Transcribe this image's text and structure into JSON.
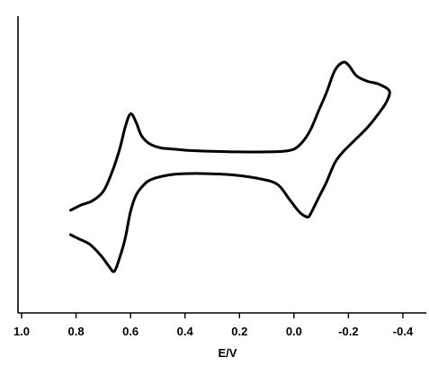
{
  "chart_data": {
    "type": "line",
    "title": "",
    "xlabel": "E/V",
    "ylabel": "",
    "x_reversed": true,
    "xlim": [
      1.0,
      -0.45
    ],
    "ylim": [
      0,
      1
    ],
    "y_axis_ticks": false,
    "grid": false,
    "legend": "none",
    "xticks": [
      1.0,
      0.8,
      0.6,
      0.4,
      0.2,
      0.0,
      -0.2,
      -0.4
    ],
    "xtick_labels": [
      "1.0",
      "0.8",
      "0.6",
      "0.4",
      "0.2",
      "0.0",
      "-0.2",
      "-0.4"
    ],
    "series": [
      {
        "x": [
          0.82,
          0.78,
          0.74,
          0.7,
          0.67,
          0.64,
          0.62,
          0.6,
          0.58,
          0.56,
          0.53,
          0.49,
          0.44,
          0.38,
          0.3,
          0.2,
          0.1,
          0.04,
          0.0,
          -0.03,
          -0.06,
          -0.09,
          -0.12,
          -0.15,
          -0.18,
          -0.2,
          -0.23,
          -0.27,
          -0.31,
          -0.35,
          -0.34,
          -0.31,
          -0.27,
          -0.22,
          -0.18,
          -0.15,
          -0.12,
          -0.1,
          -0.08,
          -0.06,
          -0.05,
          -0.03,
          -0.01,
          0.02,
          0.06,
          0.12,
          0.22,
          0.32,
          0.4,
          0.46,
          0.52,
          0.55,
          0.58,
          0.6,
          0.62,
          0.64,
          0.66,
          0.68,
          0.71,
          0.75,
          0.79,
          0.82
        ],
        "y": [
          0.325,
          0.345,
          0.36,
          0.395,
          0.46,
          0.55,
          0.63,
          0.68,
          0.65,
          0.6,
          0.57,
          0.555,
          0.55,
          0.545,
          0.542,
          0.54,
          0.54,
          0.542,
          0.55,
          0.575,
          0.62,
          0.69,
          0.76,
          0.84,
          0.87,
          0.86,
          0.82,
          0.8,
          0.79,
          0.765,
          0.725,
          0.68,
          0.63,
          0.58,
          0.54,
          0.5,
          0.43,
          0.39,
          0.35,
          0.31,
          0.3,
          0.31,
          0.33,
          0.37,
          0.42,
          0.44,
          0.455,
          0.46,
          0.46,
          0.455,
          0.44,
          0.42,
          0.38,
          0.32,
          0.22,
          0.15,
          0.1,
          0.12,
          0.16,
          0.2,
          0.22,
          0.235
        ]
      }
    ],
    "curve_color": "#000000",
    "axis_color": "#000000"
  }
}
